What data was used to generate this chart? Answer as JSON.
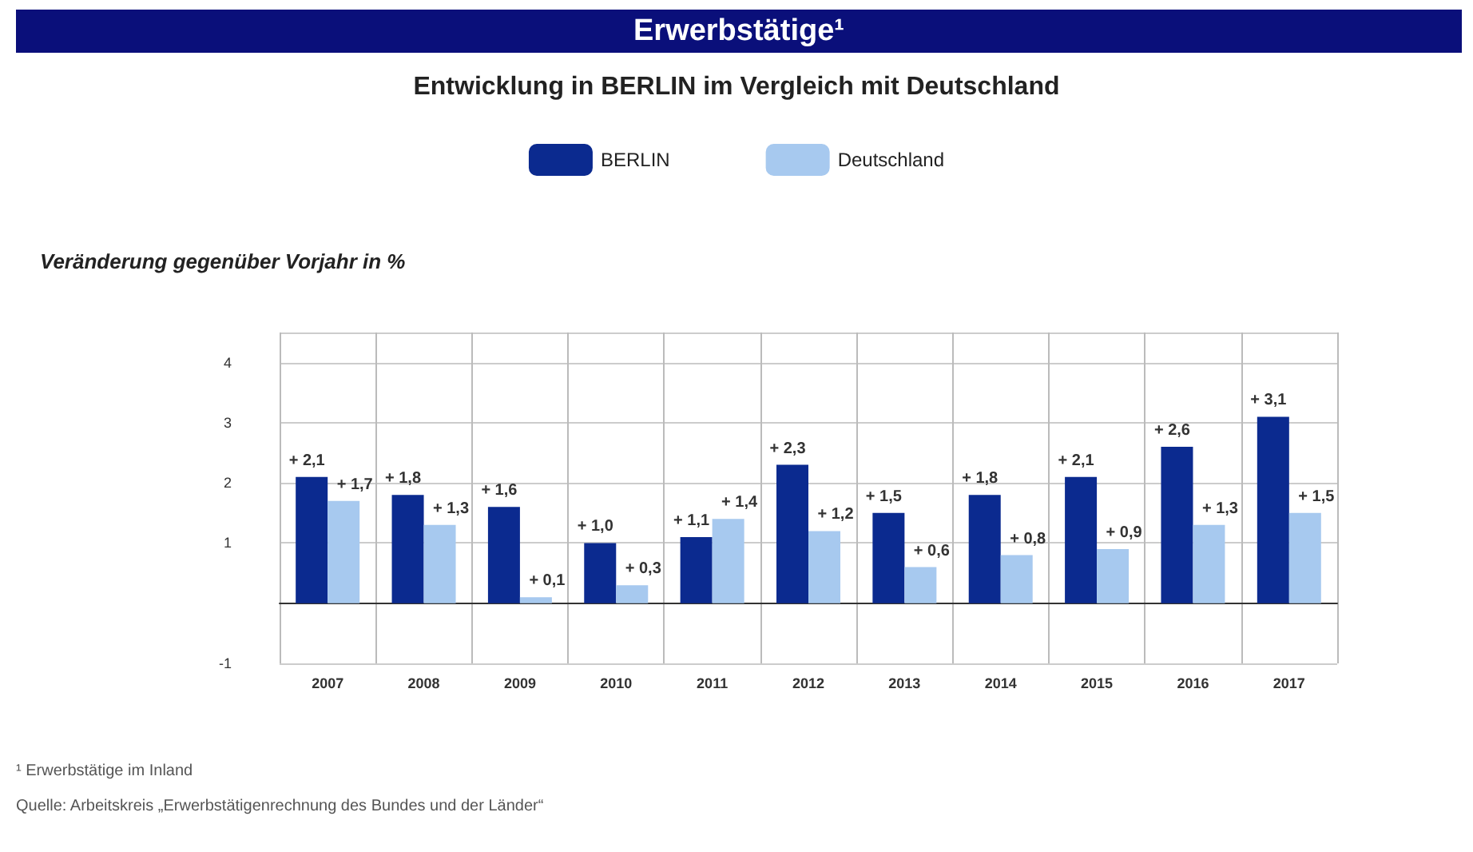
{
  "chart_data": {
    "type": "bar",
    "title": "Erwerbstätige¹",
    "subtitle": "Entwicklung in BERLIN im Vergleich mit Deutschland",
    "ylabel": "Veränderung gegenüber Vorjahr in %",
    "categories": [
      "2007",
      "2008",
      "2009",
      "2010",
      "2011",
      "2012",
      "2013",
      "2014",
      "2015",
      "2016",
      "2017"
    ],
    "series": [
      {
        "name": "BERLIN",
        "color": "#0b2a8f",
        "values": [
          2.1,
          1.8,
          1.6,
          1.0,
          1.1,
          2.3,
          1.5,
          1.8,
          2.1,
          2.6,
          3.1
        ],
        "value_labels": [
          "+ 2,1",
          "+ 1,8",
          "+ 1,6",
          "+ 1,0",
          "+ 1,1",
          "+ 2,3",
          "+ 1,5",
          "+ 1,8",
          "+ 2,1",
          "+ 2,6",
          "+ 3,1"
        ]
      },
      {
        "name": "Deutschland",
        "color": "#a7c9ef",
        "values": [
          1.7,
          1.3,
          0.1,
          0.3,
          1.4,
          1.2,
          0.6,
          0.8,
          0.9,
          1.3,
          1.5
        ],
        "value_labels": [
          "+ 1,7",
          "+ 1,3",
          "+ 0,1",
          "+ 0,3",
          "+ 1,4",
          "+ 1,2",
          "+ 0,6",
          "+ 0,8",
          "+ 0,9",
          "+ 1,3",
          "+ 1,5"
        ]
      }
    ],
    "ylim": [
      -1,
      4.5
    ],
    "yticks": [
      -1,
      1,
      2,
      3,
      4
    ],
    "grid": true,
    "legend": "top",
    "annotations": [
      "¹ Erwerbstätige im Inland",
      "Quelle: Arbeitskreis „Erwerbstätigenrechnung des Bundes und der Länder“"
    ]
  }
}
